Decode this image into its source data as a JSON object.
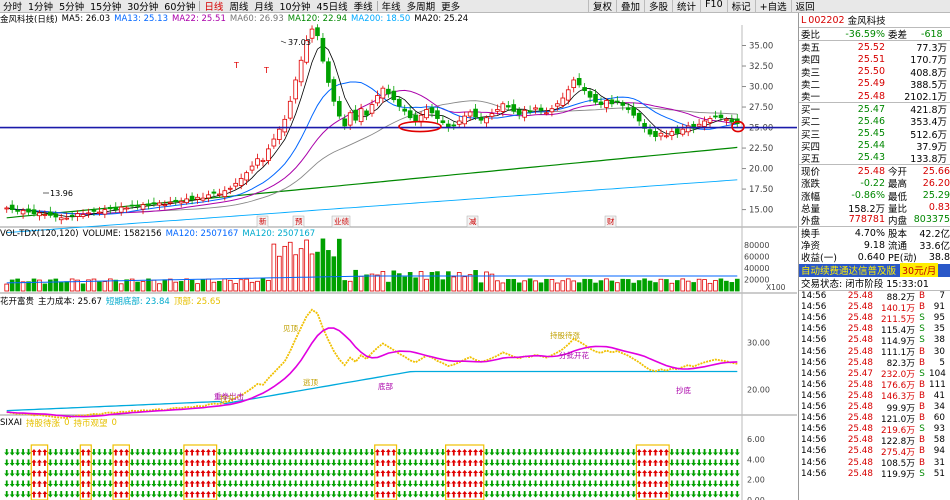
{
  "timeframes": [
    "分时",
    "1分钟",
    "5分钟",
    "15分钟",
    "30分钟",
    "60分钟",
    "日线",
    "周线",
    "月线",
    "10分钟",
    "45日线",
    "季线",
    "年线",
    "多周期",
    "更多"
  ],
  "active_timeframe": "日线",
  "tools": [
    "复权",
    "叠加",
    "多股",
    "统计",
    "F10",
    "标记",
    "+自选",
    "返回"
  ],
  "price_legend": {
    "name": "金风科技(日线)",
    "items": [
      {
        "t": "MA5: 26.03",
        "c": "#000000"
      },
      {
        "t": "MA13: 25.13",
        "c": "#0066ff"
      },
      {
        "t": "MA22: 25.51",
        "c": "#aa00aa"
      },
      {
        "t": "MA60: 26.93",
        "c": "#777777"
      },
      {
        "t": "MA120: 22.94",
        "c": "#008800"
      },
      {
        "t": "MA200: 18.50",
        "c": "#00aaff"
      },
      {
        "t": "MA20: 25.24",
        "c": "#000000"
      }
    ]
  },
  "price_axis": {
    "labels": [
      "35.00",
      "32.50",
      "30.00",
      "27.50",
      "25.00",
      "22.50",
      "20.00",
      "17.50",
      "15.00"
    ]
  },
  "annotations": {
    "high": "37.03",
    "low": "13.96",
    "marks": [
      "T",
      "T"
    ]
  },
  "event_markers": [
    "新",
    "预",
    "业绩",
    "减",
    "财"
  ],
  "vol_legend": {
    "items": [
      {
        "t": "VOL-TDX(120,120)",
        "c": "#000000"
      },
      {
        "t": "VOLUME: 1582156",
        "c": "#000000"
      },
      {
        "t": "MA120: 2507167",
        "c": "#0066ff"
      },
      {
        "t": "MA120: 2507167",
        "c": "#00aacc"
      }
    ]
  },
  "vol_axis": {
    "labels": [
      "80000",
      "60000",
      "40000",
      "20000"
    ],
    "unit": "X100"
  },
  "ind_legend": {
    "items": [
      {
        "t": "花开富贵",
        "c": "#000000"
      },
      {
        "t": "主力成本: 25.67",
        "c": "#000000"
      },
      {
        "t": "短期底部: 23.84",
        "c": "#00aacc"
      },
      {
        "t": "顶部: 25.65",
        "c": "#e6c000"
      }
    ]
  },
  "ind_axis": {
    "labels": [
      "30.00",
      "20.00"
    ]
  },
  "ind_labels": [
    "见顶",
    "重拳出击",
    "逃顶",
    "底部",
    "持股待涨",
    "抄底",
    "拉升",
    "分批开花"
  ],
  "arrow_legend": {
    "items": [
      {
        "t": "SIXAI",
        "c": "#000000"
      },
      {
        "t": "持股待涨",
        "c": "#e6c000"
      },
      {
        "t": "0",
        "c": "#e6c000"
      },
      {
        "t": "持币观望",
        "c": "#e6c000"
      },
      {
        "t": "0",
        "c": "#e6c000"
      }
    ]
  },
  "arrow_axis": {
    "labels": [
      "6.00",
      "4.00",
      "2.00",
      "0.00"
    ]
  },
  "quote": {
    "code": "002202",
    "name": "金风科技",
    "mark": "L",
    "weibi_label": "委比",
    "weibi": "-36.59%",
    "weicha_label": "委差",
    "weicha": "-618",
    "asks": [
      {
        "l": "卖五",
        "p": "25.52",
        "v": "77.3万"
      },
      {
        "l": "卖四",
        "p": "25.51",
        "v": "170.7万"
      },
      {
        "l": "卖三",
        "p": "25.50",
        "v": "408.8万"
      },
      {
        "l": "卖二",
        "p": "25.49",
        "v": "388.5万"
      },
      {
        "l": "卖一",
        "p": "25.48",
        "v": "2102.1万"
      }
    ],
    "bids": [
      {
        "l": "买一",
        "p": "25.47",
        "v": "421.8万"
      },
      {
        "l": "买二",
        "p": "25.46",
        "v": "353.4万"
      },
      {
        "l": "买三",
        "p": "25.45",
        "v": "512.6万"
      },
      {
        "l": "买四",
        "p": "25.44",
        "v": "37.9万"
      },
      {
        "l": "买五",
        "p": "25.43",
        "v": "133.8万"
      }
    ],
    "stats": [
      {
        "a": "现价",
        "b": "25.48",
        "bc": "red",
        "c": "今开",
        "d": "25.66",
        "dc": "red"
      },
      {
        "a": "涨跌",
        "b": "-0.22",
        "bc": "green",
        "c": "最高",
        "d": "26.20",
        "dc": "red"
      },
      {
        "a": "涨幅",
        "b": "-0.86%",
        "bc": "green",
        "c": "最低",
        "d": "25.29",
        "dc": "green"
      },
      {
        "a": "总量",
        "b": "158.2万",
        "bc": "",
        "c": "量比",
        "d": "0.83",
        "dc": "red"
      },
      {
        "a": "外盘",
        "b": "778781",
        "bc": "red",
        "c": "内盘",
        "d": "803375",
        "dc": "green"
      }
    ],
    "stats2": [
      {
        "a": "换手",
        "b": "4.70%",
        "bc": "",
        "c": "股本",
        "d": "42.2亿",
        "dc": ""
      },
      {
        "a": "净资",
        "b": "9.18",
        "bc": "",
        "c": "流通",
        "d": "33.6亿",
        "dc": ""
      },
      {
        "a": "收益(一)",
        "b": "0.640",
        "bc": "",
        "c": "PE(动)",
        "d": "38.8",
        "dc": ""
      }
    ],
    "ad": "自动续费通达信普及版",
    "ad_price": "30元/月",
    "trade_status": "交易状态: 闭市阶段 15:33:01"
  },
  "ticks": [
    {
      "t": "14:56",
      "p": "25.48",
      "v": "88.2万",
      "vc": "",
      "s": "B",
      "n": "7"
    },
    {
      "t": "14:56",
      "p": "25.48",
      "v": "140.1万",
      "vc": "red",
      "s": "B",
      "n": "91"
    },
    {
      "t": "14:56",
      "p": "25.48",
      "v": "211.5万",
      "vc": "red",
      "s": "S",
      "n": "95"
    },
    {
      "t": "14:56",
      "p": "25.48",
      "v": "115.4万",
      "vc": "",
      "s": "S",
      "n": "35"
    },
    {
      "t": "14:56",
      "p": "25.48",
      "v": "114.9万",
      "vc": "",
      "s": "S",
      "n": "38"
    },
    {
      "t": "14:56",
      "p": "25.48",
      "v": "111.1万",
      "vc": "",
      "s": "B",
      "n": "30"
    },
    {
      "t": "14:56",
      "p": "25.48",
      "v": "82.3万",
      "vc": "",
      "s": "B",
      "n": "5"
    },
    {
      "t": "14:56",
      "p": "25.47",
      "v": "232.0万",
      "vc": "red",
      "s": "S",
      "n": "104"
    },
    {
      "t": "14:56",
      "p": "25.48",
      "v": "176.6万",
      "vc": "red",
      "s": "B",
      "n": "111"
    },
    {
      "t": "14:56",
      "p": "25.48",
      "v": "146.3万",
      "vc": "red",
      "s": "B",
      "n": "41"
    },
    {
      "t": "14:56",
      "p": "25.48",
      "v": "99.9万",
      "vc": "",
      "s": "B",
      "n": "34"
    },
    {
      "t": "14:56",
      "p": "25.48",
      "v": "121.0万",
      "vc": "",
      "s": "B",
      "n": "60"
    },
    {
      "t": "14:56",
      "p": "25.48",
      "v": "219.6万",
      "vc": "red",
      "s": "S",
      "n": "93"
    },
    {
      "t": "14:56",
      "p": "25.48",
      "v": "122.8万",
      "vc": "",
      "s": "B",
      "n": "58"
    },
    {
      "t": "14:56",
      "p": "25.48",
      "v": "275.4万",
      "vc": "red",
      "s": "B",
      "n": "94"
    },
    {
      "t": "14:56",
      "p": "25.48",
      "v": "108.5万",
      "vc": "",
      "s": "B",
      "n": "31"
    },
    {
      "t": "14:56",
      "p": "25.48",
      "v": "119.9万",
      "vc": "",
      "s": "S",
      "n": "51"
    }
  ],
  "chart_data": {
    "type": "candlestick",
    "title": "金风科技(日线)",
    "ylim": [
      13,
      37.5
    ],
    "hline": 25,
    "closes": [
      15.2,
      15.0,
      14.8,
      14.9,
      14.7,
      14.5,
      14.6,
      14.4,
      14.3,
      14.1,
      14.0,
      13.96,
      14.2,
      14.5,
      14.4,
      14.6,
      14.8,
      14.7,
      15.0,
      15.1,
      15.0,
      15.3,
      15.2,
      15.5,
      15.4,
      15.6,
      15.5,
      15.7,
      15.8,
      15.6,
      15.9,
      16.1,
      16.0,
      16.3,
      16.2,
      16.5,
      16.4,
      16.8,
      17.0,
      16.9,
      17.3,
      17.6,
      18.2,
      18.8,
      19.5,
      20.3,
      21.2,
      21.0,
      22.4,
      23.6,
      24.8,
      26.0,
      28.2,
      30.8,
      33.2,
      35.6,
      37.0,
      36.2,
      33.1,
      30.5,
      28.2,
      26.4,
      25.2,
      26.8,
      25.9,
      27.3,
      26.5,
      27.8,
      28.9,
      29.8,
      29.1,
      28.4,
      27.6,
      27.0,
      26.2,
      25.8,
      26.5,
      27.2,
      26.8,
      26.1,
      25.6,
      25.0,
      25.3,
      25.8,
      26.4,
      26.9,
      26.3,
      25.9,
      26.2,
      26.7,
      27.2,
      27.9,
      27.5,
      27.0,
      26.6,
      27.1,
      26.9,
      27.4,
      27.1,
      26.8,
      27.3,
      27.9,
      28.6,
      29.6,
      30.8,
      30.2,
      29.5,
      28.7,
      28.1,
      27.8,
      28.3,
      27.9,
      28.2,
      27.7,
      27.2,
      26.5,
      25.8,
      24.9,
      24.2,
      23.9,
      24.3,
      24.0,
      24.5,
      24.3,
      24.8,
      25.2,
      24.9,
      25.4,
      25.8,
      26.1,
      26.4,
      26.2,
      26.0,
      25.7,
      25.48
    ],
    "volume_ylim": [
      0,
      90000
    ],
    "indicator_ylim": [
      15,
      38
    ],
    "arrow_ylim": [
      0,
      7
    ]
  }
}
